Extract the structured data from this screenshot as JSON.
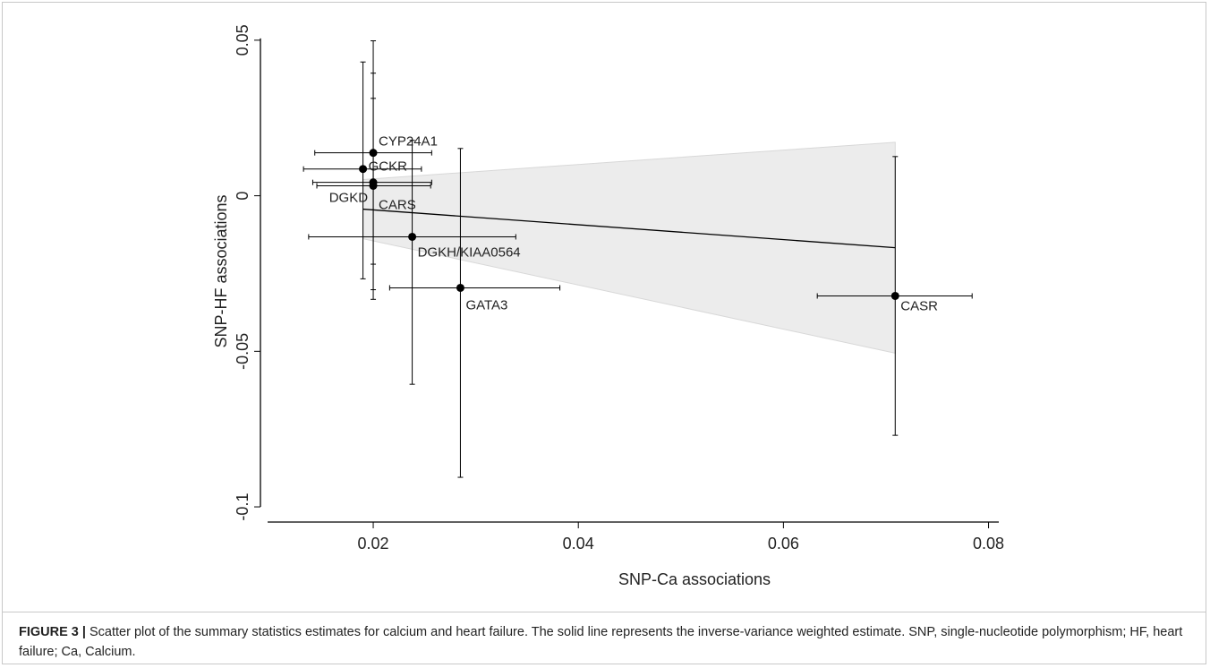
{
  "chart_data": {
    "type": "scatter",
    "xlabel": "SNP-Ca associations",
    "ylabel": "SNP-HF associations",
    "xlim": [
      0.009,
      0.081
    ],
    "ylim": [
      -0.102,
      0.054
    ],
    "xticks": [
      0.02,
      0.04,
      0.06,
      0.08
    ],
    "yticks": [
      0.05,
      0,
      -0.05,
      -0.1
    ],
    "color": "#000000",
    "labels": [
      "CYP24A1",
      "GCKR",
      "DGKD",
      "CARS",
      "DGKH/KIAA0564",
      "GATA3",
      "CASR"
    ],
    "x": [
      0.02,
      0.019,
      0.02,
      0.02,
      0.0238,
      0.0285,
      0.0709
    ],
    "y": [
      0.0138,
      0.0086,
      0.0043,
      0.0032,
      -0.0132,
      -0.0296,
      -0.0322
    ],
    "x_low": [
      0.0143,
      0.0132,
      0.0141,
      0.0145,
      0.0137,
      0.0216,
      0.0633
    ],
    "x_high": [
      0.0257,
      0.0247,
      0.0257,
      0.0256,
      0.0339,
      0.0382,
      0.0784
    ],
    "y_low": [
      -0.022,
      -0.0267,
      -0.0302,
      -0.0333,
      -0.0606,
      -0.0905,
      -0.077
    ],
    "y_high": [
      0.0498,
      0.043,
      0.0394,
      0.0313,
      0.0178,
      0.0152,
      0.0126
    ],
    "fit": {
      "x": [
        0.019,
        0.0709
      ],
      "y": [
        -0.0043,
        -0.0167
      ],
      "upper": [
        0.0052,
        0.0172
      ],
      "lower": [
        -0.0138,
        -0.0506
      ],
      "band_color": "#ececec"
    },
    "caption_label": "FIGURE 3 |",
    "caption": "Scatter plot of the summary statistics estimates for calcium and heart failure. The solid line represents the inverse-variance weighted estimate. SNP, single-nucleotide polymorphism; HF, heart failure; Ca, Calcium."
  }
}
